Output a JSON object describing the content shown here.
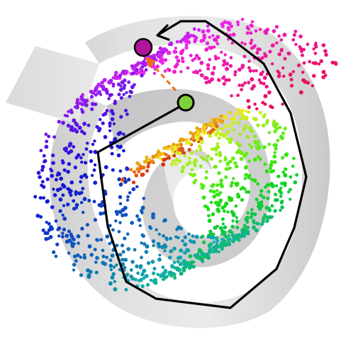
{
  "figure": {
    "kind": "swiss-roll-manifold-geodesic",
    "background_color": "#ffffff",
    "surface_color": "#c8c8c8",
    "point_count": 1500,
    "color_scheme": "rainbow-along-roll",
    "path": {
      "color": "#000000",
      "start_marker_color": "#7fd13b",
      "end_marker_color": "#b0159c",
      "shortcut_color": "#e8701a",
      "shortcut_style": "dashed-arrow",
      "arrow_style": "open-chevron"
    }
  }
}
